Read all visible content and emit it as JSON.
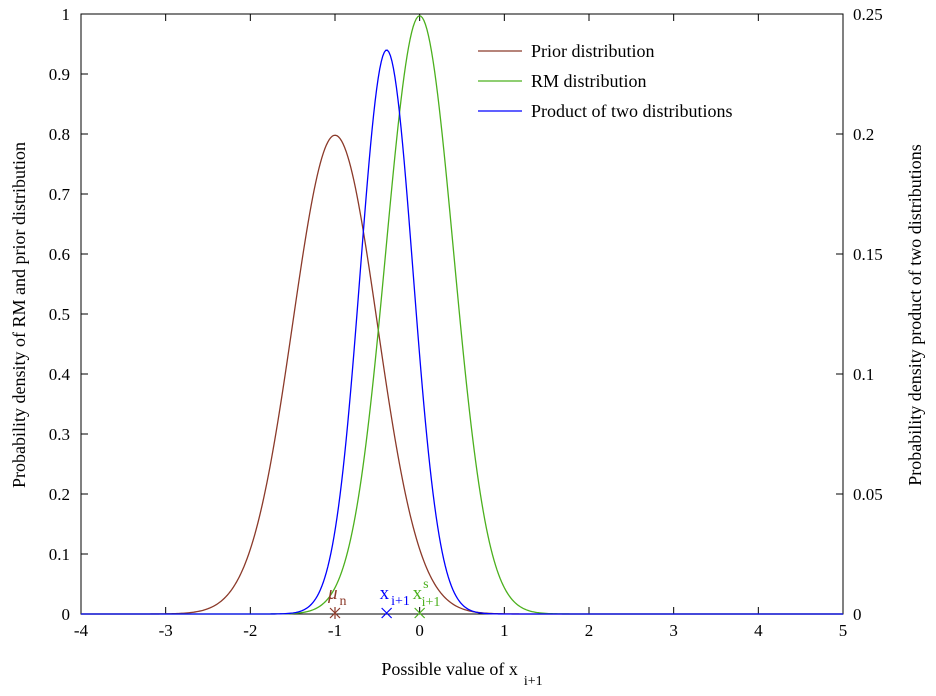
{
  "chart_data": {
    "type": "line",
    "xlabel": "Possible value of x",
    "xlabel_subscript": "i+1",
    "ylabel_left": "Probability density of RM and prior distribution",
    "ylabel_right": "Probability density product of two distributions",
    "xlim": [
      -4,
      5
    ],
    "ylim_left": [
      0,
      1
    ],
    "ylim_right": [
      0,
      0.25
    ],
    "xticks": [
      "-4",
      "-3",
      "-2",
      "-1",
      "0",
      "1",
      "2",
      "3",
      "4",
      "5"
    ],
    "yticks_left": [
      "0",
      "0.1",
      "0.2",
      "0.3",
      "0.4",
      "0.5",
      "0.6",
      "0.7",
      "0.8",
      "0.9",
      "1"
    ],
    "yticks_right": [
      "0",
      "0.05",
      "0.1",
      "0.15",
      "0.2",
      "0.25"
    ],
    "grid": false,
    "legend_position": "top-right",
    "series": [
      {
        "name": "Prior distribution",
        "color": "#8b3a2a",
        "axis": "left",
        "mean": -1.0,
        "sigma": 0.5,
        "peak": 0.798
      },
      {
        "name": "RM distribution",
        "color": "#4cb01e",
        "axis": "left",
        "mean": 0.0,
        "sigma": 0.4,
        "peak": 0.997
      },
      {
        "name": "Product of two distributions",
        "color": "#0000ff",
        "axis": "right",
        "mean": -0.39,
        "sigma": 0.312,
        "peak": 0.235
      }
    ],
    "markers": [
      {
        "x": -1.0,
        "y": 0,
        "symbol": "*",
        "color": "#8b3a2a",
        "label": "μ",
        "label_sub": "n",
        "label_sup": ""
      },
      {
        "x": -0.39,
        "y": 0,
        "symbol": "x",
        "color": "#0000ff",
        "label": "x",
        "label_sub": "i+1",
        "label_sup": ""
      },
      {
        "x": 0.0,
        "y": 0,
        "symbol": "x",
        "color": "#4cb01e",
        "label": "x",
        "label_sub": "i+1",
        "label_sup": "s"
      }
    ]
  }
}
